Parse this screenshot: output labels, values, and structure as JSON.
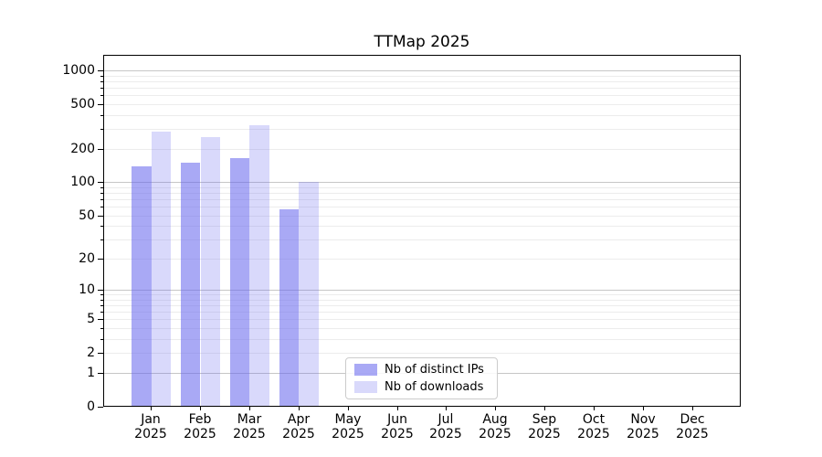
{
  "figure": {
    "title": "TTMap 2025"
  },
  "chart_data": {
    "type": "bar",
    "title": "TTMap 2025",
    "categories": [
      "Jan",
      "Feb",
      "Mar",
      "Apr",
      "May",
      "Jun",
      "Jul",
      "Aug",
      "Sep",
      "Oct",
      "Nov",
      "Dec"
    ],
    "category_year": "2025",
    "series": [
      {
        "name": "Nb of distinct IPs",
        "color": "rgba(102,102,238,0.56)",
        "values": [
          140,
          150,
          165,
          57,
          0,
          0,
          0,
          0,
          0,
          0,
          0,
          0
        ]
      },
      {
        "name": "Nb of downloads",
        "color": "rgba(102,102,238,0.25)",
        "values": [
          290,
          258,
          330,
          102,
          0,
          0,
          0,
          0,
          0,
          0,
          0,
          0
        ]
      }
    ],
    "yscale": "log1p",
    "ylim": [
      0,
      1400
    ],
    "y_ticks": [
      1000,
      500,
      200,
      100,
      50,
      20,
      10,
      5,
      2,
      1,
      0
    ],
    "grid": true,
    "legend_position": "lower-center"
  },
  "colors": {
    "bar_dark": "#a9a9f6",
    "bar_light": "#d9d9f9",
    "grid_major": "#c6c6c6",
    "grid_minor": "#ececec",
    "axis": "#000000",
    "legend_border": "#cccccc"
  }
}
